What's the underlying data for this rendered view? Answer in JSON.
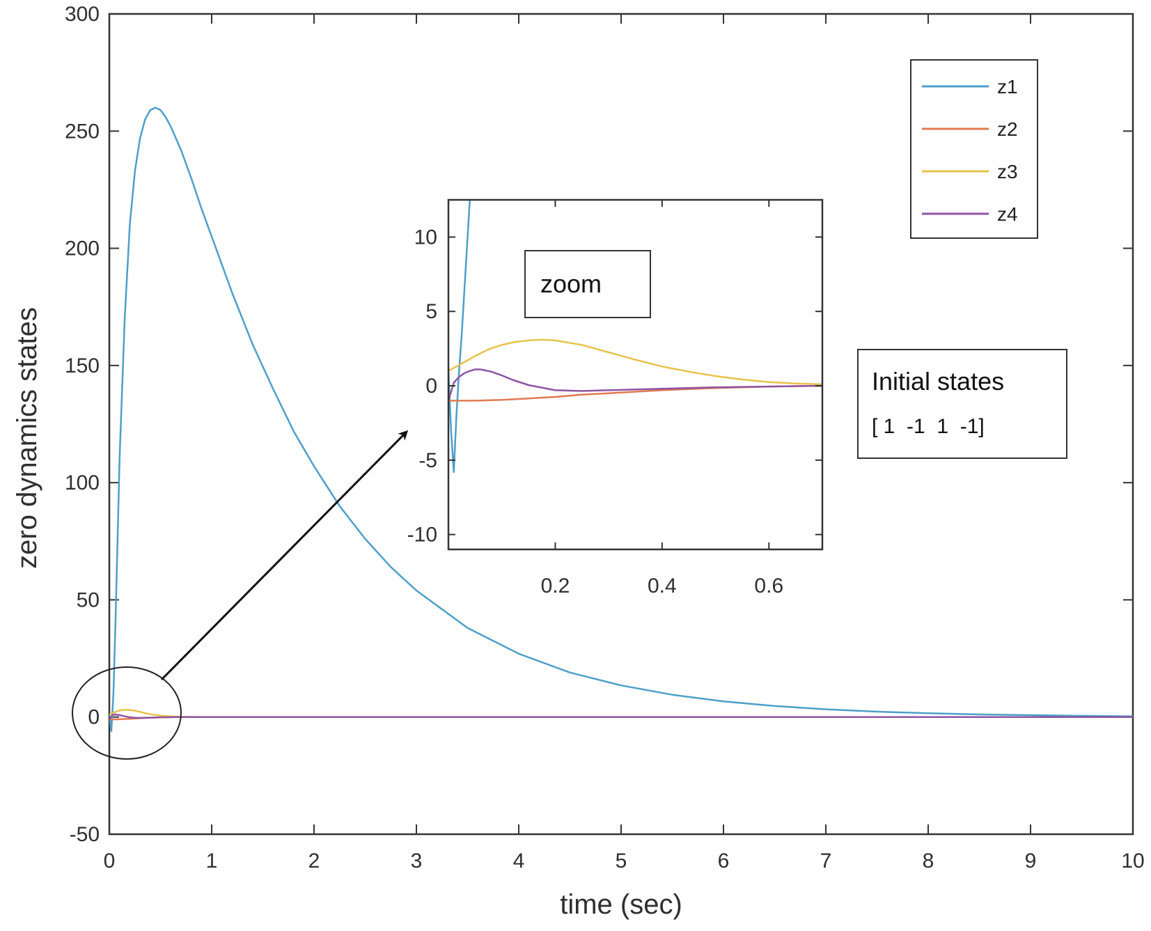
{
  "chart_data": [
    {
      "type": "line",
      "panel": "main",
      "xlabel": "time (sec)",
      "ylabel": "zero dynamics states",
      "xlim": [
        0,
        10
      ],
      "ylim": [
        -50,
        300
      ],
      "xticks": [
        0,
        1,
        2,
        3,
        4,
        5,
        6,
        7,
        8,
        9,
        10
      ],
      "yticks": [
        -50,
        0,
        50,
        100,
        150,
        200,
        250,
        300
      ],
      "grid": false,
      "legend_position": "top-right",
      "series": [
        {
          "name": "z1",
          "color": "#4d9fc9",
          "x": [
            0,
            0.02,
            0.04,
            0.06,
            0.08,
            0.1,
            0.15,
            0.2,
            0.25,
            0.3,
            0.35,
            0.4,
            0.45,
            0.5,
            0.55,
            0.6,
            0.7,
            0.8,
            0.9,
            1.0,
            1.2,
            1.4,
            1.6,
            1.8,
            2.0,
            2.25,
            2.5,
            2.75,
            3.0,
            3.5,
            4.0,
            4.5,
            5.0,
            5.5,
            6.0,
            6.5,
            7.0,
            7.5,
            8.0,
            8.5,
            9.0,
            9.5,
            10.0
          ],
          "y": [
            1,
            -6,
            10,
            40,
            75,
            110,
            170,
            210,
            233,
            247,
            255,
            259,
            260,
            259,
            256,
            252,
            242,
            230,
            217,
            205,
            181,
            159,
            140,
            122,
            107,
            90,
            76,
            64,
            54,
            38,
            27,
            19,
            13.5,
            9.5,
            6.7,
            4.7,
            3.3,
            2.3,
            1.6,
            1.1,
            0.8,
            0.5,
            0.3
          ]
        },
        {
          "name": "z2",
          "color": "#e07a52",
          "x": [
            0,
            0.05,
            0.1,
            0.2,
            0.3,
            0.4,
            0.5,
            0.6,
            0.7,
            1.0,
            10.0
          ],
          "y": [
            -1,
            -1.0,
            -0.95,
            -0.75,
            -0.5,
            -0.3,
            -0.15,
            -0.05,
            0,
            0,
            0
          ]
        },
        {
          "name": "z3",
          "color": "#e8c24a",
          "x": [
            0,
            0.05,
            0.1,
            0.15,
            0.2,
            0.25,
            0.3,
            0.35,
            0.4,
            0.5,
            0.6,
            0.7,
            1.0,
            10.0
          ],
          "y": [
            1,
            2.0,
            2.8,
            3.1,
            3.0,
            2.7,
            2.2,
            1.7,
            1.2,
            0.6,
            0.3,
            0.1,
            0,
            0
          ]
        },
        {
          "name": "z4",
          "color": "#8e54a3",
          "x": [
            0,
            0.03,
            0.06,
            0.1,
            0.15,
            0.2,
            0.25,
            0.3,
            0.4,
            0.5,
            0.7,
            10.0
          ],
          "y": [
            -1,
            0.9,
            1.1,
            0.8,
            0.3,
            -0.1,
            -0.3,
            -0.35,
            -0.25,
            -0.1,
            0,
            0
          ]
        }
      ]
    },
    {
      "type": "line",
      "panel": "inset",
      "xlim": [
        0,
        0.7
      ],
      "ylim": [
        -11,
        12.5
      ],
      "xticks": [
        0.2,
        0.4,
        0.6
      ],
      "yticks": [
        -10,
        -5,
        0,
        5,
        10
      ],
      "grid": false,
      "series": [
        {
          "name": "z1",
          "color": "#4d9fc9",
          "x": [
            0,
            0.005,
            0.01,
            0.015,
            0.02,
            0.025,
            0.03,
            0.035,
            0.04
          ],
          "y": [
            1,
            -3,
            -5.8,
            -2,
            1,
            3.5,
            6.5,
            9.5,
            12.5
          ]
        },
        {
          "name": "z2",
          "color": "#e07a52",
          "x": [
            0,
            0.05,
            0.1,
            0.15,
            0.2,
            0.25,
            0.3,
            0.4,
            0.5,
            0.6,
            0.7
          ],
          "y": [
            -1,
            -1.0,
            -0.95,
            -0.85,
            -0.75,
            -0.6,
            -0.5,
            -0.3,
            -0.15,
            -0.05,
            0
          ]
        },
        {
          "name": "z3",
          "color": "#e8c24a",
          "x": [
            0,
            0.025,
            0.05,
            0.075,
            0.1,
            0.125,
            0.15,
            0.175,
            0.2,
            0.25,
            0.3,
            0.35,
            0.4,
            0.45,
            0.5,
            0.55,
            0.6,
            0.65,
            0.7
          ],
          "y": [
            1,
            1.5,
            2.0,
            2.45,
            2.75,
            2.95,
            3.05,
            3.1,
            3.05,
            2.75,
            2.25,
            1.75,
            1.3,
            0.95,
            0.65,
            0.42,
            0.25,
            0.15,
            0.1
          ]
        },
        {
          "name": "z4",
          "color": "#8e54a3",
          "x": [
            0,
            0.01,
            0.02,
            0.03,
            0.04,
            0.05,
            0.06,
            0.08,
            0.1,
            0.12,
            0.15,
            0.2,
            0.25,
            0.3,
            0.4,
            0.5,
            0.6,
            0.7
          ],
          "y": [
            -1,
            0.2,
            0.6,
            0.85,
            1.0,
            1.1,
            1.1,
            0.95,
            0.7,
            0.4,
            0.05,
            -0.3,
            -0.35,
            -0.3,
            -0.2,
            -0.1,
            -0.05,
            0
          ]
        }
      ]
    }
  ],
  "annotations": {
    "zoom_label": "zoom",
    "initial_states_title": "Initial states",
    "initial_states_value": "[ 1  -1  1  -1]"
  }
}
